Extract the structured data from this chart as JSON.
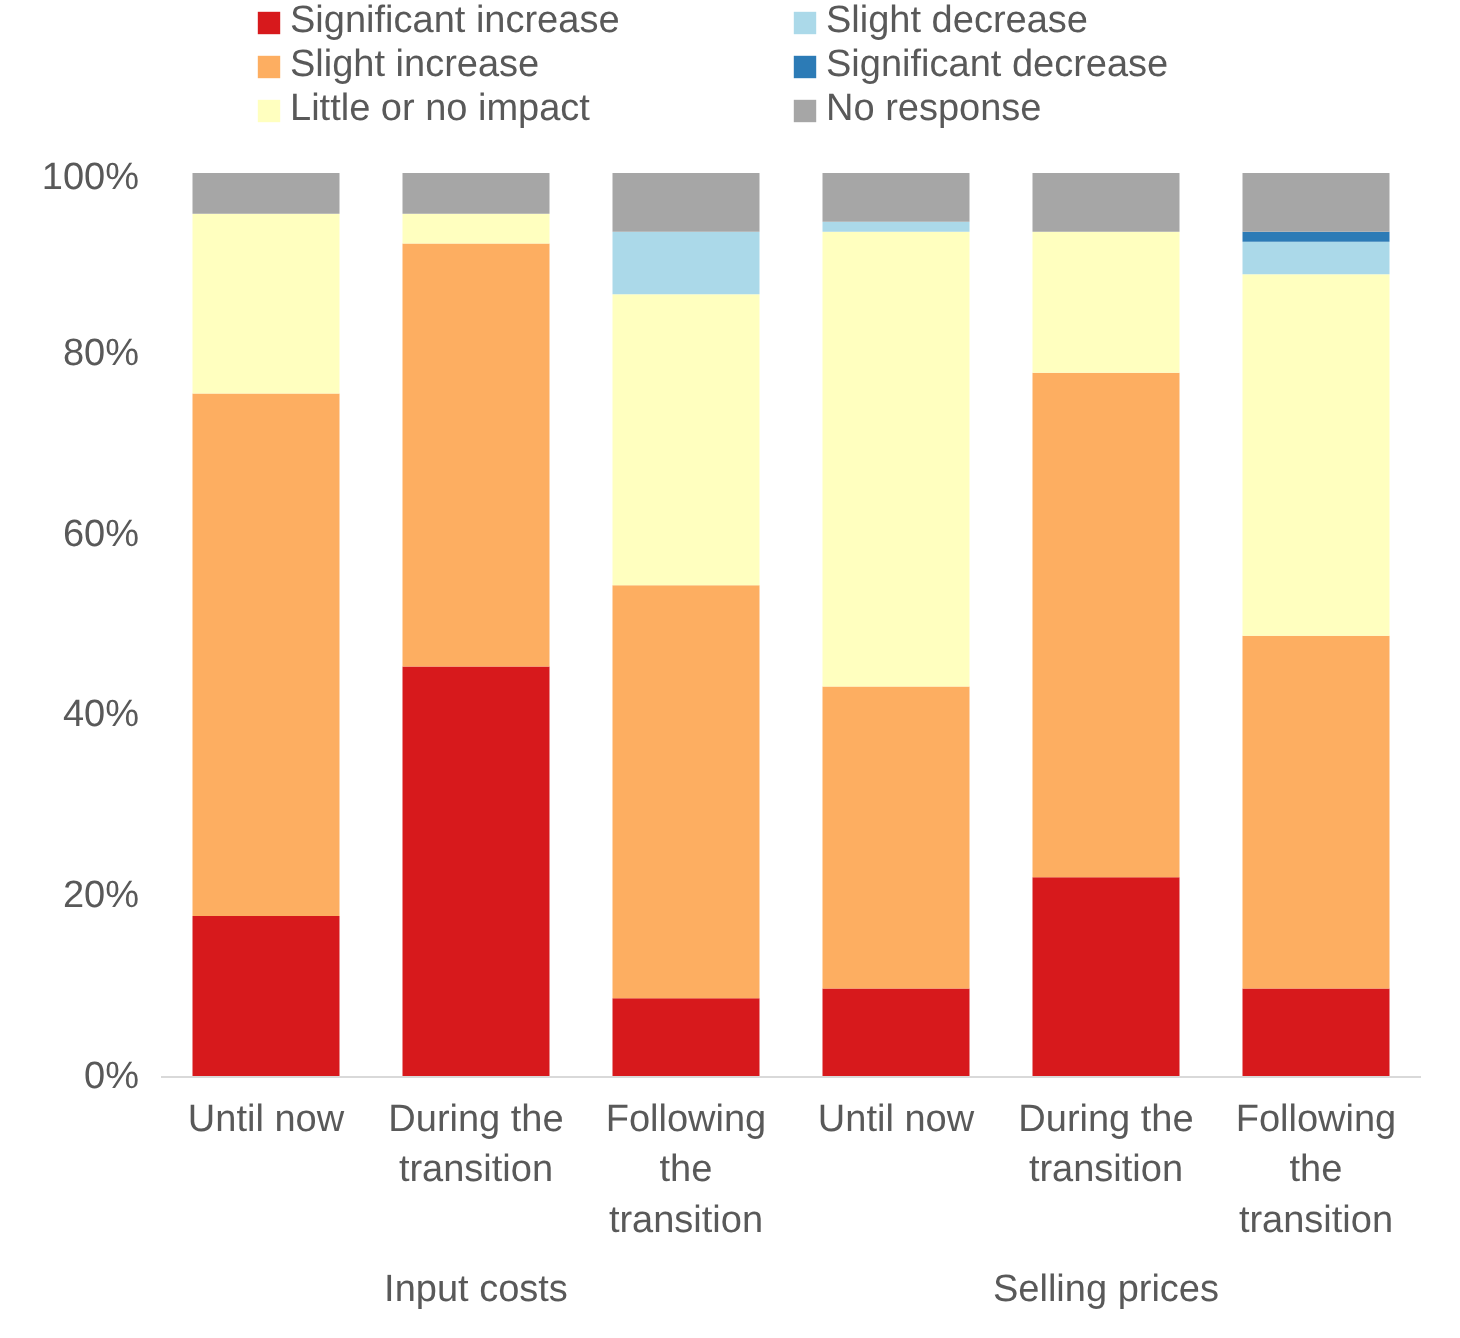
{
  "chart_data": {
    "type": "bar",
    "stacked": true,
    "categories": [
      "Until now",
      "During the transition",
      "Following the transition",
      "Until now",
      "During the transition",
      "Following the transition"
    ],
    "annotations": [
      "Input costs",
      "Selling prices"
    ],
    "series": [
      {
        "name": "Significant increase",
        "color": "#d7191c",
        "values": [
          17.8,
          45.4,
          8.7,
          9.8,
          22.1,
          9.8
        ]
      },
      {
        "name": "Slight increase",
        "color": "#fdae61",
        "values": [
          57.8,
          46.8,
          45.7,
          33.4,
          55.8,
          39.0
        ]
      },
      {
        "name": "Little or no impact",
        "color": "#ffffbf",
        "values": [
          19.9,
          3.3,
          32.2,
          50.3,
          15.6,
          40.0
        ]
      },
      {
        "name": "Slight decrease",
        "color": "#abd9e9",
        "values": [
          0,
          0,
          6.9,
          1.1,
          0,
          3.6
        ]
      },
      {
        "name": "Significant decrease",
        "color": "#2c7bb6",
        "values": [
          0,
          0,
          0,
          0,
          0,
          1.1
        ]
      },
      {
        "name": "No response",
        "color": "#a6a6a6",
        "values": [
          4.5,
          4.5,
          6.5,
          5.4,
          6.5,
          6.5
        ]
      }
    ],
    "ylim": [
      0,
      100
    ],
    "yticks": [
      {
        "value": 0,
        "label": "0%"
      },
      {
        "value": 20,
        "label": "20%"
      },
      {
        "value": 40,
        "label": "40%"
      },
      {
        "value": 60,
        "label": "60%"
      },
      {
        "value": 80,
        "label": "80%"
      },
      {
        "value": 100,
        "label": "100%"
      }
    ],
    "grid": false,
    "legend": "top"
  }
}
